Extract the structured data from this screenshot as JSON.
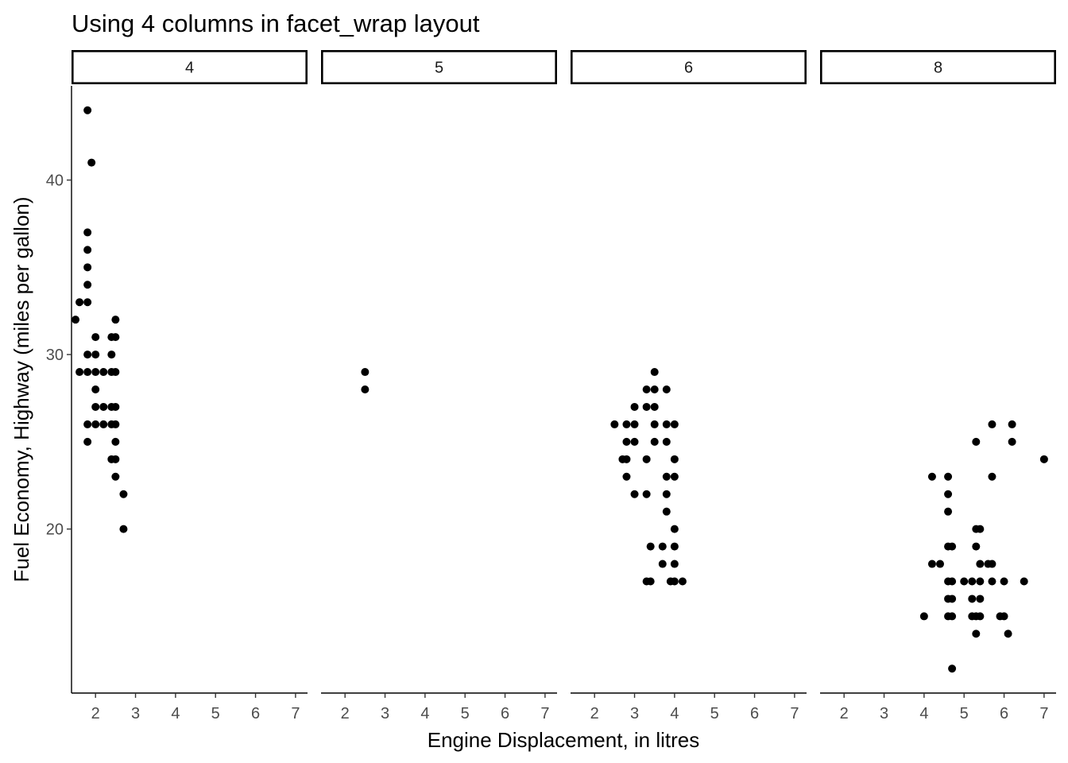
{
  "chart_data": {
    "type": "scatter",
    "title": "Using 4 columns in facet_wrap layout",
    "xlabel": "Engine Displacement, in litres",
    "ylabel": "Fuel Economy, Highway (miles per gallon)",
    "facet_layout": "facet_wrap, 4 columns",
    "xlim": [
      1.4,
      7.3
    ],
    "ylim": [
      10.6,
      45.4
    ],
    "x_ticks": [
      2,
      3,
      4,
      5,
      6,
      7
    ],
    "y_ticks": [
      20,
      30,
      40
    ],
    "grid": false,
    "point_color": "#000000",
    "facets": [
      {
        "label": "4",
        "points": [
          [
            1.8,
            44
          ],
          [
            1.9,
            41
          ],
          [
            1.8,
            37
          ],
          [
            1.8,
            36
          ],
          [
            1.8,
            35
          ],
          [
            1.8,
            34
          ],
          [
            1.6,
            33
          ],
          [
            1.8,
            33
          ],
          [
            1.5,
            32
          ],
          [
            2.5,
            32
          ],
          [
            2.0,
            31
          ],
          [
            2.4,
            31
          ],
          [
            2.5,
            31
          ],
          [
            1.8,
            30
          ],
          [
            2.0,
            30
          ],
          [
            2.4,
            30
          ],
          [
            1.6,
            29
          ],
          [
            1.8,
            29
          ],
          [
            2.0,
            29
          ],
          [
            2.2,
            29
          ],
          [
            2.4,
            29
          ],
          [
            2.5,
            29
          ],
          [
            2.0,
            28
          ],
          [
            2.0,
            27
          ],
          [
            2.2,
            27
          ],
          [
            2.4,
            27
          ],
          [
            2.5,
            27
          ],
          [
            1.8,
            26
          ],
          [
            2.0,
            26
          ],
          [
            2.2,
            26
          ],
          [
            2.4,
            26
          ],
          [
            2.5,
            26
          ],
          [
            1.8,
            25
          ],
          [
            2.5,
            25
          ],
          [
            2.4,
            24
          ],
          [
            2.5,
            24
          ],
          [
            2.5,
            23
          ],
          [
            2.7,
            22
          ],
          [
            2.7,
            20
          ]
        ]
      },
      {
        "label": "5",
        "points": [
          [
            2.5,
            29
          ],
          [
            2.5,
            28
          ]
        ]
      },
      {
        "label": "6",
        "points": [
          [
            3.5,
            29
          ],
          [
            3.3,
            28
          ],
          [
            3.5,
            28
          ],
          [
            3.8,
            28
          ],
          [
            3.0,
            27
          ],
          [
            3.3,
            27
          ],
          [
            3.5,
            27
          ],
          [
            2.5,
            26
          ],
          [
            2.8,
            26
          ],
          [
            3.0,
            26
          ],
          [
            3.5,
            26
          ],
          [
            3.8,
            26
          ],
          [
            4.0,
            26
          ],
          [
            2.8,
            25
          ],
          [
            3.0,
            25
          ],
          [
            3.5,
            25
          ],
          [
            3.8,
            25
          ],
          [
            2.7,
            24
          ],
          [
            2.8,
            24
          ],
          [
            3.3,
            24
          ],
          [
            4.0,
            24
          ],
          [
            2.8,
            23
          ],
          [
            3.8,
            23
          ],
          [
            4.0,
            23
          ],
          [
            3.0,
            22
          ],
          [
            3.3,
            22
          ],
          [
            3.8,
            22
          ],
          [
            3.8,
            21
          ],
          [
            4.0,
            20
          ],
          [
            3.4,
            19
          ],
          [
            3.7,
            19
          ],
          [
            4.0,
            19
          ],
          [
            3.7,
            18
          ],
          [
            4.0,
            18
          ],
          [
            3.3,
            17
          ],
          [
            3.4,
            17
          ],
          [
            3.9,
            17
          ],
          [
            4.0,
            17
          ],
          [
            4.2,
            17
          ]
        ]
      },
      {
        "label": "8",
        "points": [
          [
            5.7,
            26
          ],
          [
            6.2,
            26
          ],
          [
            5.3,
            25
          ],
          [
            6.2,
            25
          ],
          [
            7.0,
            24
          ],
          [
            4.2,
            23
          ],
          [
            4.6,
            23
          ],
          [
            5.7,
            23
          ],
          [
            4.6,
            22
          ],
          [
            4.6,
            21
          ],
          [
            5.3,
            20
          ],
          [
            5.4,
            20
          ],
          [
            4.6,
            19
          ],
          [
            4.7,
            19
          ],
          [
            5.3,
            19
          ],
          [
            4.2,
            18
          ],
          [
            4.4,
            18
          ],
          [
            5.4,
            18
          ],
          [
            5.6,
            18
          ],
          [
            5.7,
            18
          ],
          [
            4.6,
            17
          ],
          [
            4.7,
            17
          ],
          [
            5.0,
            17
          ],
          [
            5.2,
            17
          ],
          [
            5.4,
            17
          ],
          [
            5.7,
            17
          ],
          [
            6.0,
            17
          ],
          [
            6.5,
            17
          ],
          [
            4.6,
            16
          ],
          [
            4.7,
            16
          ],
          [
            5.2,
            16
          ],
          [
            5.4,
            16
          ],
          [
            4.0,
            15
          ],
          [
            4.6,
            15
          ],
          [
            4.7,
            15
          ],
          [
            5.2,
            15
          ],
          [
            5.3,
            15
          ],
          [
            5.4,
            15
          ],
          [
            5.9,
            15
          ],
          [
            6.0,
            15
          ],
          [
            5.3,
            14
          ],
          [
            6.1,
            14
          ],
          [
            4.7,
            12
          ]
        ]
      }
    ]
  }
}
